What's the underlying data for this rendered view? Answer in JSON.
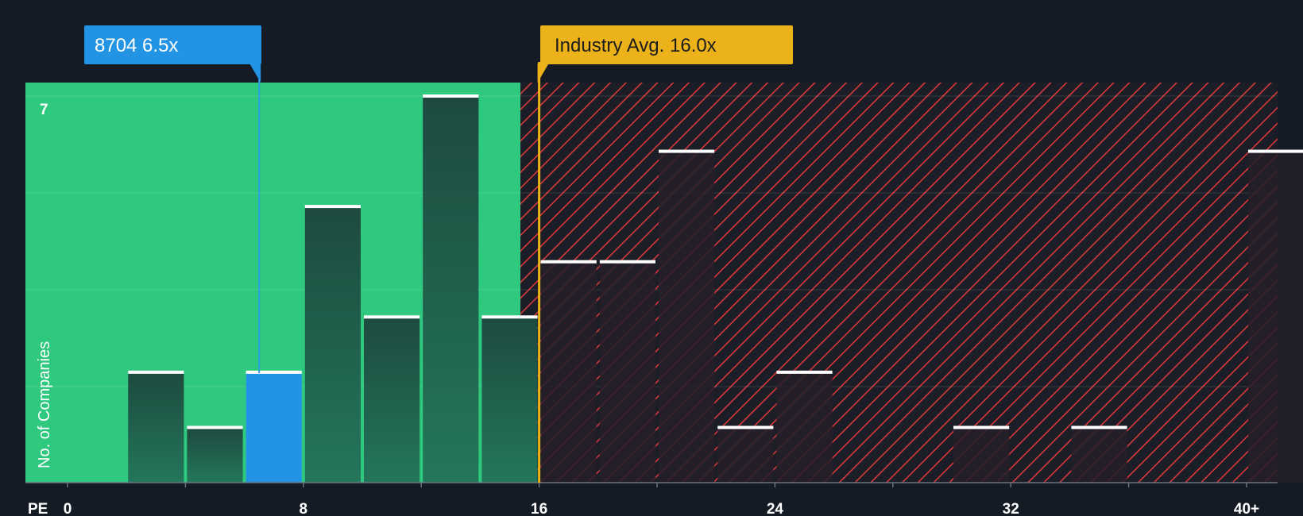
{
  "chart_data": {
    "type": "bar",
    "x_axis_label": "PE",
    "y_axis_label": "No. of Companies",
    "x_ticks": [
      "0",
      "8",
      "16",
      "24",
      "32",
      "40+"
    ],
    "y_ticks": [
      "7"
    ],
    "ylim": [
      0,
      7
    ],
    "bin_width": 2,
    "bars": [
      {
        "x_start": 2,
        "value": 2,
        "highlight": false
      },
      {
        "x_start": 4,
        "value": 1,
        "highlight": false
      },
      {
        "x_start": 6,
        "value": 2,
        "highlight": true
      },
      {
        "x_start": 8,
        "value": 5,
        "highlight": false
      },
      {
        "x_start": 10,
        "value": 3,
        "highlight": false
      },
      {
        "x_start": 12,
        "value": 7,
        "highlight": false
      },
      {
        "x_start": 14,
        "value": 3,
        "highlight": false
      },
      {
        "x_start": 16,
        "value": 4,
        "highlight": false
      },
      {
        "x_start": 18,
        "value": 4,
        "highlight": false
      },
      {
        "x_start": 20,
        "value": 6,
        "highlight": false
      },
      {
        "x_start": 22,
        "value": 1,
        "highlight": false
      },
      {
        "x_start": 24,
        "value": 2,
        "highlight": false
      },
      {
        "x_start": 30,
        "value": 1,
        "highlight": false
      },
      {
        "x_start": 34,
        "value": 1,
        "highlight": false
      },
      {
        "x_start": 40,
        "value": 6,
        "highlight": false
      }
    ],
    "company": {
      "label": "8704 6.5x",
      "value": 6.5
    },
    "industry_avg": {
      "label": "Industry Avg. 16.0x",
      "value": 16.0
    },
    "grid": true,
    "colors": {
      "background": "#151b24",
      "undervalued_zone": "#2ec97e",
      "overvalued_hatch": "#d9383a",
      "bar_green_zone": "#1f4a3f",
      "bar_red_zone": "#251f29",
      "bar_highlight": "#2394e3",
      "bar_top": "#ffffff",
      "company_callout": "#2394e3",
      "industry_callout": "#ecb21a"
    }
  }
}
